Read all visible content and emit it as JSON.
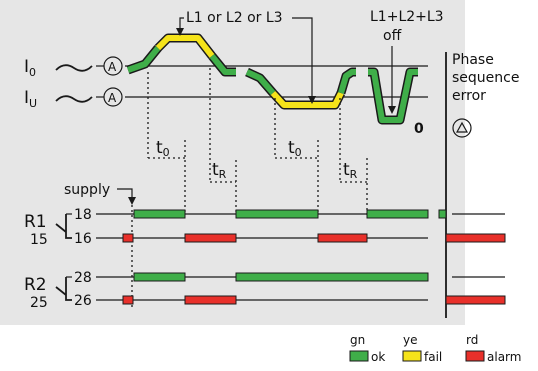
{
  "labels": {
    "l_any": "L1 or L2 or L3",
    "l_all_line1": "L1+L2+L3",
    "l_all_line2": "off",
    "phase_line1": "Phase",
    "phase_line2": "sequence",
    "phase_line3": "error",
    "i0": "I",
    "i0_sub": "0",
    "iu": "I",
    "iu_sub": "U",
    "a1": "A",
    "a2": "A",
    "zero": "0",
    "t0_a": "t",
    "t0_a_sub": "0",
    "t0_b": "t",
    "t0_b_sub": "0",
    "tr_a": "t",
    "tr_a_sub": "R",
    "tr_b": "t",
    "tr_b_sub": "R",
    "supply": "supply",
    "r1": "R1",
    "r1_common": "15",
    "r1_no": "18",
    "r1_nc": "16",
    "r2": "R2",
    "r2_common": "25",
    "r2_no": "28",
    "r2_nc": "26"
  },
  "legend": [
    {
      "code": "gn",
      "meaning": "ok",
      "color": "#3fae49"
    },
    {
      "code": "ye",
      "meaning": "fail",
      "color": "#f5e31a"
    },
    {
      "code": "rd",
      "meaning": "alarm",
      "color": "#e8302a"
    }
  ],
  "colors": {
    "green": "#3fae49",
    "yellow": "#f5e31a",
    "red": "#e8302a",
    "panel": "#e6e6e6"
  }
}
